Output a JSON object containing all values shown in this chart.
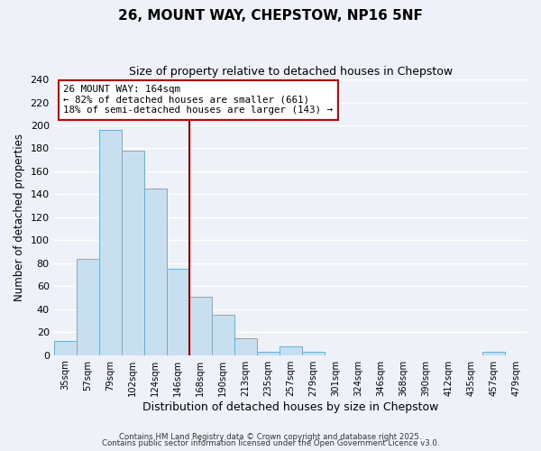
{
  "title": "26, MOUNT WAY, CHEPSTOW, NP16 5NF",
  "subtitle": "Size of property relative to detached houses in Chepstow",
  "xlabel": "Distribution of detached houses by size in Chepstow",
  "ylabel": "Number of detached properties",
  "bar_color": "#c8dff0",
  "bar_edge_color": "#6baed6",
  "background_color": "#eef2f8",
  "grid_color": "#ffffff",
  "bin_labels": [
    "35sqm",
    "57sqm",
    "79sqm",
    "102sqm",
    "124sqm",
    "146sqm",
    "168sqm",
    "190sqm",
    "213sqm",
    "235sqm",
    "257sqm",
    "279sqm",
    "301sqm",
    "324sqm",
    "346sqm",
    "368sqm",
    "390sqm",
    "412sqm",
    "435sqm",
    "457sqm",
    "479sqm"
  ],
  "bar_heights": [
    12,
    84,
    196,
    178,
    145,
    75,
    51,
    35,
    15,
    3,
    8,
    3,
    0,
    0,
    0,
    0,
    0,
    0,
    0,
    3,
    0
  ],
  "vline_color": "#aa0000",
  "annotation_text": "26 MOUNT WAY: 164sqm\n← 82% of detached houses are smaller (661)\n18% of semi-detached houses are larger (143) →",
  "annotation_box_color": "#ffffff",
  "annotation_box_edge_color": "#cc0000",
  "ylim": [
    0,
    240
  ],
  "yticks": [
    0,
    20,
    40,
    60,
    80,
    100,
    120,
    140,
    160,
    180,
    200,
    220,
    240
  ],
  "footer_line1": "Contains HM Land Registry data © Crown copyright and database right 2025.",
  "footer_line2": "Contains public sector information licensed under the Open Government Licence v3.0."
}
